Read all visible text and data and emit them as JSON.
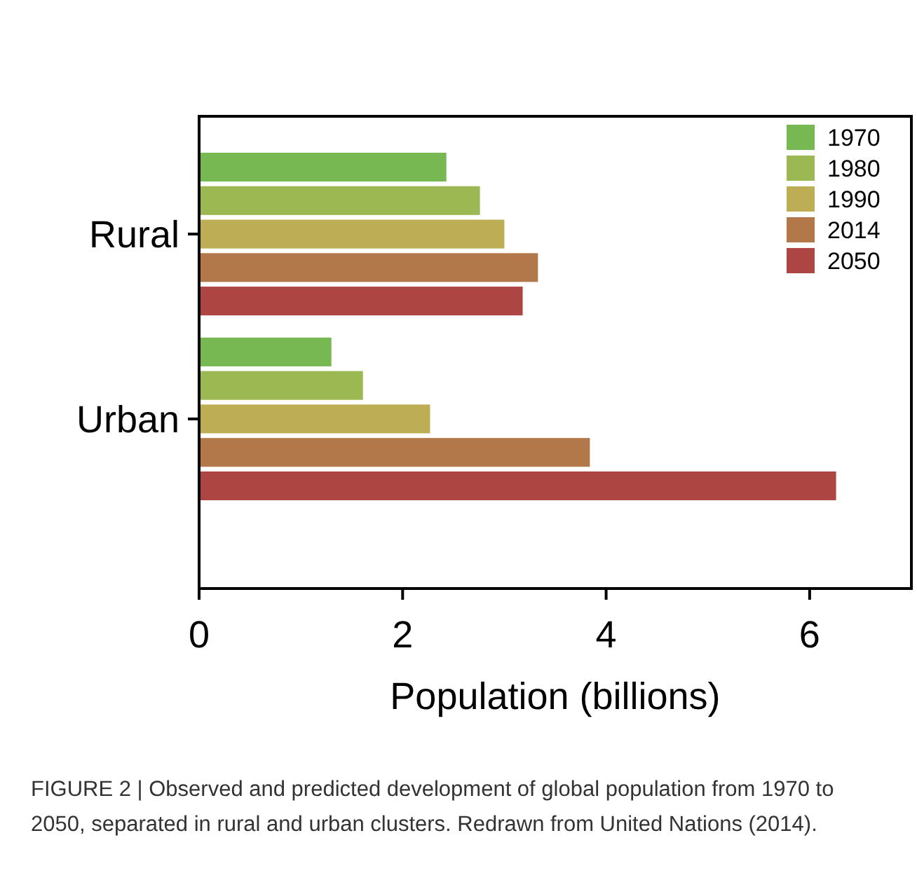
{
  "chart_data": {
    "type": "bar",
    "orientation": "horizontal",
    "categories": [
      "Rural",
      "Urban"
    ],
    "series": [
      {
        "name": "1970",
        "color": "#77b852",
        "values": [
          2.43,
          1.3
        ]
      },
      {
        "name": "1980",
        "color": "#9bb853",
        "values": [
          2.76,
          1.61
        ]
      },
      {
        "name": "1990",
        "color": "#bdae55",
        "values": [
          3.0,
          2.27
        ]
      },
      {
        "name": "2014",
        "color": "#b3784a",
        "values": [
          3.33,
          3.84
        ]
      },
      {
        "name": "2050",
        "color": "#ad4642",
        "values": [
          3.18,
          6.26
        ]
      }
    ],
    "xlim": [
      0,
      7
    ],
    "xticks": [
      0,
      2,
      4,
      6
    ],
    "xlabel": "Population (billions)",
    "legend": "top right",
    "grid": false,
    "annotations": [
      "FIGURE 2 | Observed and predicted development of global population from 1970 to 2050, separated in rural and urban clusters. Redrawn from United Nations (2014)."
    ]
  }
}
